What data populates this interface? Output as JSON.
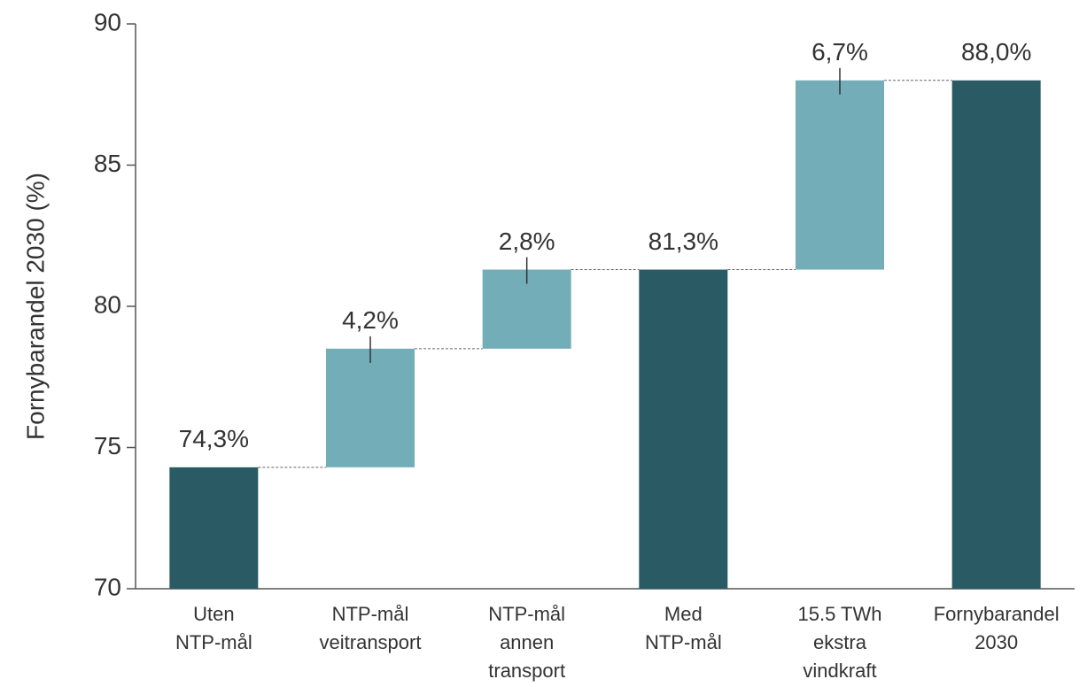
{
  "chart_data": {
    "type": "waterfall",
    "y_label": "Fornybarandel 2030 (%)",
    "categories": [
      [
        "Uten",
        "NTP-mål"
      ],
      [
        "NTP-mål",
        "veitransport"
      ],
      [
        "NTP-mål",
        "annen",
        "transport"
      ],
      [
        "Med",
        "NTP-mål"
      ],
      [
        "15.5 TWh",
        "ekstra",
        "vindkraft"
      ],
      [
        "Fornybarandel",
        "2030"
      ]
    ],
    "values": [
      74.3,
      4.2,
      2.8,
      81.3,
      6.7,
      88.0
    ],
    "value_labels": [
      "74,3%",
      "4,2%",
      "2,8%",
      "81,3%",
      "6,7%",
      "88,0%"
    ],
    "measures": [
      "absolute",
      "relative",
      "relative",
      "total",
      "relative",
      "total"
    ],
    "colors": {
      "absolute": "#2a5a63",
      "relative": "#72adb8",
      "total": "#2a5a63"
    },
    "ylim": [
      70,
      90
    ],
    "yticks": [
      70,
      75,
      80,
      85,
      90
    ],
    "grid": false
  }
}
